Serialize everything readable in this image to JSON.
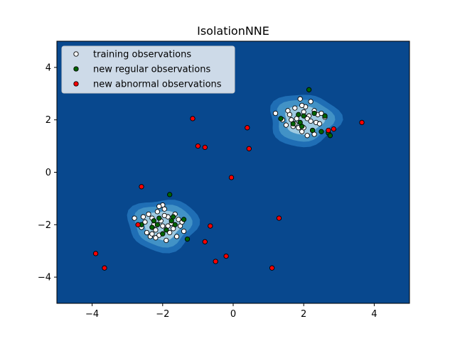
{
  "chart_data": {
    "type": "scatter",
    "title": "IsolationNNE",
    "xlim": [
      -5,
      5
    ],
    "ylim": [
      -5,
      5
    ],
    "x_ticks": [
      -4,
      -2,
      0,
      2,
      4
    ],
    "y_ticks": [
      -4,
      -2,
      0,
      2,
      4
    ],
    "x_tick_labels": [
      "−4",
      "−2",
      "0",
      "2",
      "4"
    ],
    "y_tick_labels": [
      "−4",
      "−2",
      "0",
      "2",
      "4"
    ],
    "grid": false,
    "legend_placement": "upper-left",
    "background_color": "#08488e",
    "contour_colors": [
      "#1f6eb5",
      "#4292c6",
      "#9ecae1"
    ],
    "clusters": [
      {
        "center": [
          -2,
          -2
        ]
      },
      {
        "center": [
          2,
          2
        ]
      }
    ],
    "series": [
      {
        "name": "training observations",
        "color": "#ffffff",
        "points": [
          [
            -2.8,
            -1.75
          ],
          [
            -2.6,
            -2.1
          ],
          [
            -2.5,
            -1.9
          ],
          [
            -2.45,
            -2.3
          ],
          [
            -2.4,
            -1.6
          ],
          [
            -2.35,
            -2.45
          ],
          [
            -2.3,
            -1.75
          ],
          [
            -2.25,
            -2.0
          ],
          [
            -2.2,
            -2.2
          ],
          [
            -2.15,
            -1.5
          ],
          [
            -2.1,
            -2.4
          ],
          [
            -2.05,
            -1.85
          ],
          [
            -2.0,
            -2.05
          ],
          [
            -1.95,
            -1.4
          ],
          [
            -1.9,
            -2.6
          ],
          [
            -1.85,
            -1.7
          ],
          [
            -1.8,
            -2.3
          ],
          [
            -1.75,
            -1.95
          ],
          [
            -1.7,
            -2.15
          ],
          [
            -1.65,
            -1.6
          ],
          [
            -1.6,
            -2.45
          ],
          [
            -1.55,
            -1.8
          ],
          [
            -1.5,
            -2.05
          ],
          [
            -1.45,
            -1.9
          ],
          [
            -1.4,
            -2.25
          ],
          [
            -2.55,
            -1.7
          ],
          [
            -2.0,
            -1.25
          ],
          [
            -2.2,
            -2.5
          ],
          [
            -1.85,
            -2.05
          ],
          [
            -2.3,
            -2.35
          ],
          [
            -1.95,
            -1.65
          ],
          [
            -2.1,
            -1.3
          ],
          [
            1.2,
            2.25
          ],
          [
            1.4,
            2.0
          ],
          [
            1.5,
            1.8
          ],
          [
            1.6,
            2.2
          ],
          [
            1.7,
            1.75
          ],
          [
            1.75,
            2.45
          ],
          [
            1.8,
            2.05
          ],
          [
            1.85,
            1.7
          ],
          [
            1.9,
            2.8
          ],
          [
            1.95,
            1.55
          ],
          [
            2.0,
            2.3
          ],
          [
            2.05,
            2.5
          ],
          [
            2.1,
            1.4
          ],
          [
            2.15,
            2.15
          ],
          [
            2.2,
            2.7
          ],
          [
            2.25,
            1.6
          ],
          [
            2.3,
            2.35
          ],
          [
            2.35,
            1.9
          ],
          [
            2.4,
            2.2
          ],
          [
            2.45,
            1.85
          ],
          [
            2.5,
            2.25
          ],
          [
            2.6,
            2.1
          ],
          [
            1.65,
            2.0
          ],
          [
            1.55,
            2.35
          ],
          [
            2.0,
            1.7
          ],
          [
            2.1,
            2.05
          ],
          [
            1.95,
            2.55
          ],
          [
            2.3,
            1.45
          ],
          [
            1.75,
            1.85
          ],
          [
            2.2,
            1.95
          ]
        ]
      },
      {
        "name": "new regular observations",
        "color": "#006400",
        "points": [
          [
            -2.6,
            -2.0
          ],
          [
            -2.3,
            -2.1
          ],
          [
            -2.1,
            -1.75
          ],
          [
            -2.0,
            -2.35
          ],
          [
            -1.9,
            -2.2
          ],
          [
            -1.8,
            -0.85
          ],
          [
            -1.75,
            -1.85
          ],
          [
            -1.65,
            -2.0
          ],
          [
            -1.4,
            -1.8
          ],
          [
            -1.3,
            -2.55
          ],
          [
            -2.15,
            -2.0
          ],
          [
            -1.7,
            -1.7
          ],
          [
            -2.25,
            -1.85
          ],
          [
            1.35,
            2.05
          ],
          [
            1.7,
            1.85
          ],
          [
            1.85,
            2.2
          ],
          [
            1.95,
            1.75
          ],
          [
            2.15,
            3.15
          ],
          [
            2.3,
            2.25
          ],
          [
            2.5,
            1.55
          ],
          [
            2.6,
            2.15
          ],
          [
            2.7,
            1.5
          ],
          [
            2.75,
            1.4
          ],
          [
            1.9,
            1.9
          ],
          [
            2.0,
            2.15
          ],
          [
            2.25,
            1.6
          ]
        ]
      },
      {
        "name": "new abnormal observations",
        "color": "#ff0000",
        "points": [
          [
            -3.9,
            -3.1
          ],
          [
            -3.65,
            -3.65
          ],
          [
            -2.7,
            -2.0
          ],
          [
            -2.6,
            -0.55
          ],
          [
            -1.15,
            2.05
          ],
          [
            -1.0,
            1.0
          ],
          [
            -0.8,
            0.95
          ],
          [
            -0.8,
            -2.65
          ],
          [
            -0.65,
            -2.05
          ],
          [
            -0.5,
            -3.4
          ],
          [
            -0.2,
            -3.2
          ],
          [
            -0.05,
            -0.2
          ],
          [
            0.4,
            1.7
          ],
          [
            0.45,
            0.9
          ],
          [
            1.1,
            -3.65
          ],
          [
            1.3,
            -1.75
          ],
          [
            2.7,
            1.6
          ],
          [
            2.85,
            1.65
          ],
          [
            3.65,
            1.9
          ]
        ]
      }
    ]
  }
}
